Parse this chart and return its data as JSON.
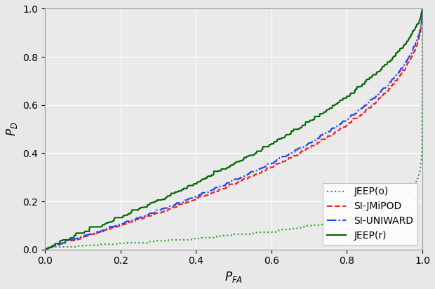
{
  "title": "",
  "xlabel": "$P_{FA}$",
  "ylabel": "$P_D$",
  "xlim": [
    0.0,
    1.0
  ],
  "ylim": [
    0.0,
    1.0
  ],
  "xticks": [
    0.0,
    0.2,
    0.4,
    0.6,
    0.8,
    1.0
  ],
  "yticks": [
    0.0,
    0.2,
    0.4,
    0.6,
    0.8,
    1.0
  ],
  "grid": true,
  "background_color": "#eaeaea",
  "curves": {
    "jeep_o": {
      "color": "#22aa22",
      "linestyle": "dotted",
      "linewidth": 1.5
    },
    "si_jmipod": {
      "color": "#ee2222",
      "linestyle": "dashed",
      "linewidth": 1.5
    },
    "si_uniward": {
      "color": "#2244ee",
      "linestyle": "dashdot",
      "linewidth": 1.5
    },
    "jeep_r": {
      "color": "#006600",
      "linestyle": "solid",
      "linewidth": 1.5
    }
  },
  "legend_labels": [
    "JEEP(o)",
    "SI-JMiPOD",
    "SI-UNIWARD",
    "JEEP(r)"
  ]
}
